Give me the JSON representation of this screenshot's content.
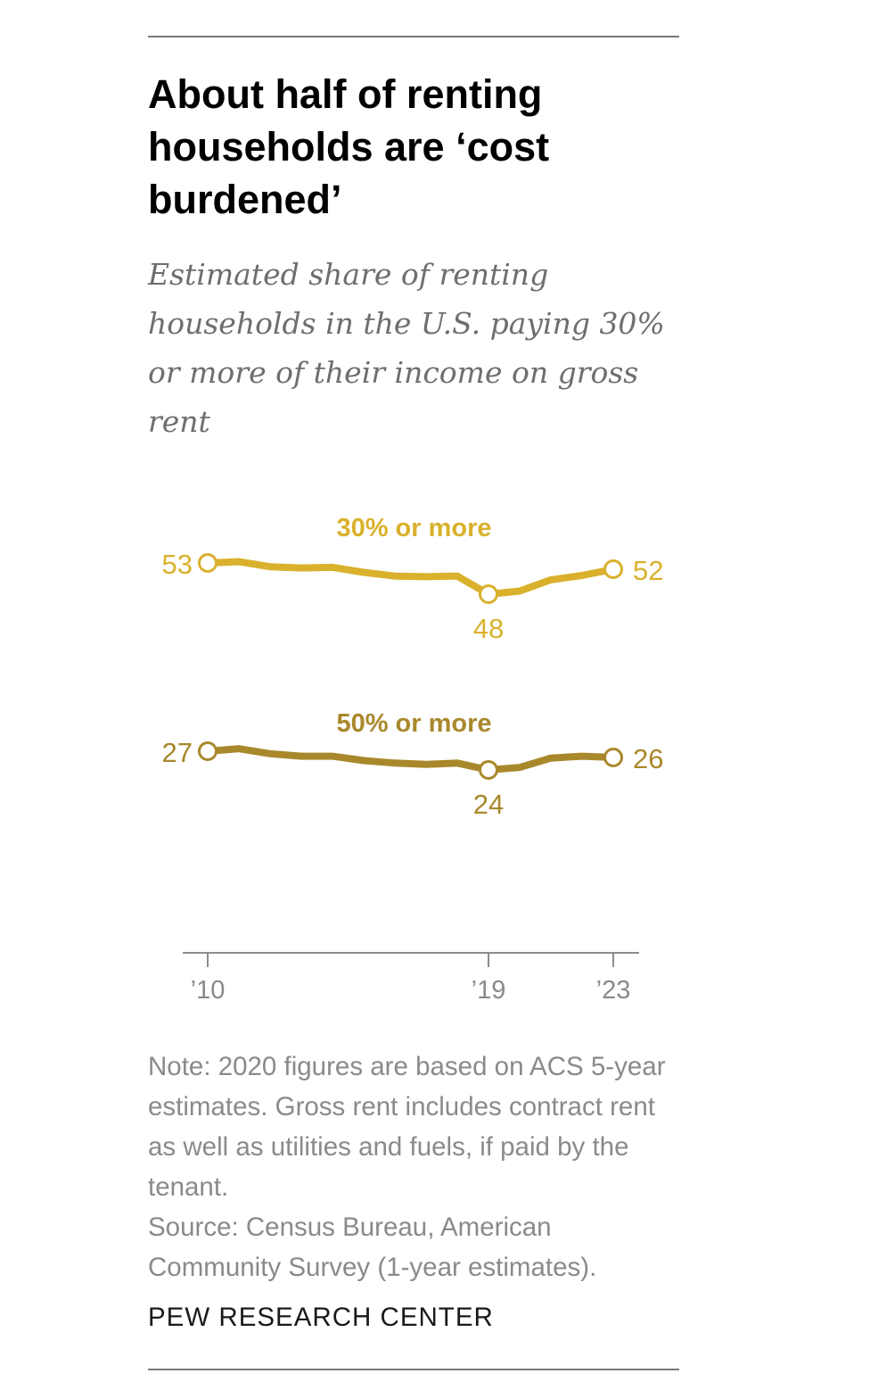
{
  "title": "About half of renting households are ‘cost burdened’",
  "subtitle": "Estimated share of renting households in the U.S. paying 30% or more of their income on gross rent",
  "note": "Note: 2020 figures are based on ACS 5-year estimates. Gross rent includes contract rent as well as utilities and fuels, if paid by the tenant.",
  "source": "Source: Census Bureau, American Community Survey (1-year estimates).",
  "credit": "PEW RESEARCH CENTER",
  "colors": {
    "series_30": "#d9b12c",
    "series_50": "#a9882c",
    "axis": "#8c8c8c",
    "text_gray": "#8a8a8a"
  },
  "chart_data": {
    "type": "line",
    "x": [
      2010,
      2011,
      2012,
      2013,
      2014,
      2015,
      2016,
      2017,
      2018,
      2019,
      2020,
      2021,
      2022,
      2023
    ],
    "xticks": [
      2010,
      2019,
      2023
    ],
    "xtick_labels": [
      "’10",
      "’19",
      "’23"
    ],
    "series": [
      {
        "name": "30% or more",
        "values": [
          53,
          53.2,
          52.4,
          52.2,
          52.3,
          51.5,
          50.9,
          50.8,
          50.9,
          48,
          48.5,
          50.3,
          51,
          52
        ],
        "labels": [
          {
            "x": 2010,
            "text": "53"
          },
          {
            "x": 2019,
            "text": "48"
          },
          {
            "x": 2023,
            "text": "52"
          }
        ]
      },
      {
        "name": "50% or more",
        "values": [
          27,
          27.4,
          26.6,
          26.2,
          26.2,
          25.5,
          25.1,
          24.9,
          25.1,
          24,
          24.4,
          25.9,
          26.2,
          26
        ],
        "labels": [
          {
            "x": 2010,
            "text": "27"
          },
          {
            "x": 2019,
            "text": "24"
          },
          {
            "x": 2023,
            "text": "26"
          }
        ]
      }
    ],
    "ylabel": "",
    "xlabel": ""
  }
}
